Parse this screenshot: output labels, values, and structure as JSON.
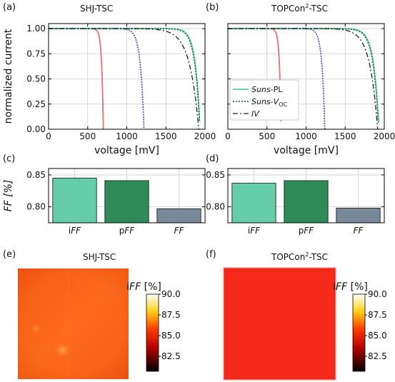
{
  "panels": {
    "a": {
      "label": "(a)",
      "title": "SHJ-TSC"
    },
    "b": {
      "label": "(b)",
      "title_main": "TOPCon",
      "title_sup": "2",
      "title_tail": "-TSC"
    },
    "c": {
      "label": "(c)"
    },
    "d": {
      "label": "(d)"
    },
    "e": {
      "label": "(e)",
      "title": "SHJ-TSC"
    },
    "f": {
      "label": "(f)",
      "title_main": "TOPCon",
      "title_sup": "2",
      "title_tail": "-TSC"
    }
  },
  "colors": {
    "red": "#ee6e6e",
    "blue": "#4a5bbf",
    "suns_pl": "#5fd0a8",
    "suns_voc": "#1f7a40",
    "iv": "#222222",
    "bar_iff": "#66cdaa",
    "bar_pff": "#2e8b57",
    "bar_ff": "#778899"
  },
  "legend": {
    "entries": [
      {
        "italic": "Suns",
        "plain": "-PL"
      },
      {
        "italic": "Suns",
        "plain": "-",
        "italic2": "V",
        "sub": "OC"
      },
      {
        "italic": "IV",
        "plain": ""
      }
    ]
  },
  "colorbar": {
    "title_prefix": "i",
    "title_italic": "FF",
    "title_suffix": " [%]",
    "ticks": [
      "90.0",
      "87.5",
      "85.0",
      "82.5"
    ]
  },
  "chart_data": [
    {
      "type": "line",
      "panel": "a",
      "title": "SHJ-TSC",
      "xlabel": "voltage [mV]",
      "ylabel": "normalized current",
      "xlim": [
        0,
        2000
      ],
      "ylim": [
        0,
        1.05
      ],
      "xticks": [
        0,
        500,
        1000,
        1500,
        2000
      ],
      "yticks": [
        "0.00",
        "0.25",
        "0.50",
        "0.75",
        "1.00"
      ],
      "grid": true,
      "series": [
        {
          "voc": 700,
          "k": 0.03,
          "color": "red",
          "dash": ""
        },
        {
          "voc": 1220,
          "k": 0.038,
          "color": "blue",
          "dash": "2,1.5"
        },
        {
          "voc": 1935,
          "k": 0.03,
          "color": "suns_pl",
          "dash": ""
        },
        {
          "voc": 1935,
          "k": 0.032,
          "color": "suns_voc",
          "dash": "2,2"
        },
        {
          "voc": 1920,
          "k": 0.06,
          "color": "iv",
          "dash": "7,3,2,3"
        }
      ]
    },
    {
      "type": "line",
      "panel": "b",
      "xlabel": "voltage [mV]",
      "xlim": [
        0,
        2000
      ],
      "ylim": [
        0,
        1.05
      ],
      "xticks": [
        0,
        500,
        1000,
        1500,
        2000
      ],
      "grid": true,
      "series": [
        {
          "voc": 680,
          "k": 0.03,
          "color": "red",
          "dash": ""
        },
        {
          "voc": 1240,
          "k": 0.03,
          "color": "blue",
          "dash": "2,1.5"
        },
        {
          "voc": 1930,
          "k": 0.034,
          "color": "suns_pl",
          "dash": ""
        },
        {
          "voc": 1930,
          "k": 0.036,
          "color": "suns_voc",
          "dash": "2,2"
        },
        {
          "voc": 1915,
          "k": 0.052,
          "color": "iv",
          "dash": "7,3,2,3"
        }
      ]
    },
    {
      "type": "bar",
      "panel": "c",
      "ylabel": "FF [%]",
      "ylim": [
        0.775,
        0.86
      ],
      "yticks": [
        "0.80",
        "0.85"
      ],
      "categories": [
        {
          "pre": "i",
          "it": "FF"
        },
        {
          "pre": "p",
          "it": "FF"
        },
        {
          "pre": "",
          "it": "FF"
        }
      ],
      "values": [
        0.845,
        0.841,
        0.797
      ]
    },
    {
      "type": "bar",
      "panel": "d",
      "ylim": [
        0.775,
        0.86
      ],
      "yticks": [
        "0.80",
        "0.85"
      ],
      "categories": [
        {
          "pre": "i",
          "it": "FF"
        },
        {
          "pre": "p",
          "it": "FF"
        },
        {
          "pre": "",
          "it": "FF"
        }
      ],
      "values": [
        0.837,
        0.841,
        0.798
      ]
    }
  ]
}
